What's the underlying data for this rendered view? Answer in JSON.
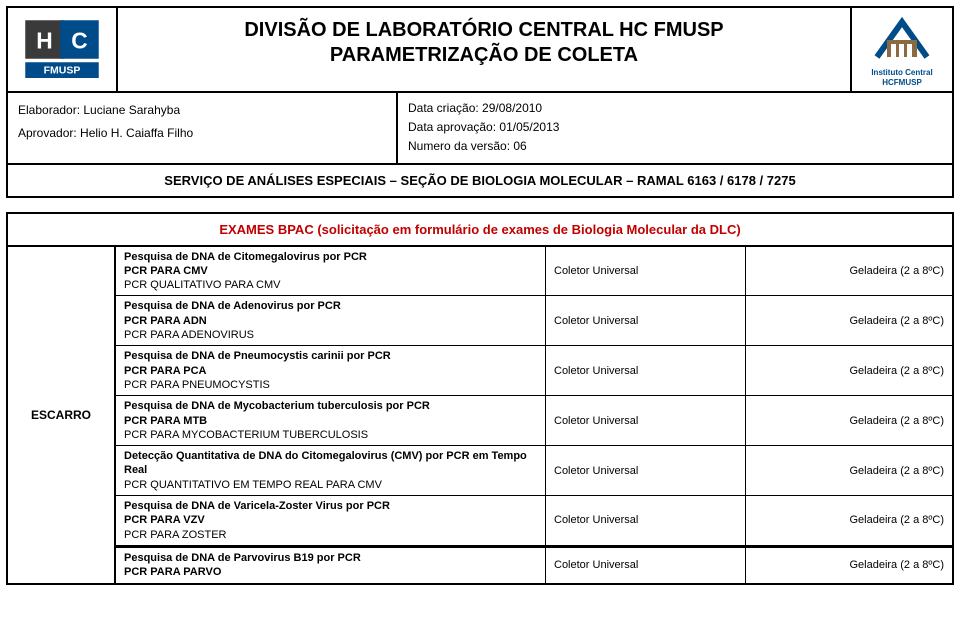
{
  "header": {
    "title_line1": "DIVISÃO DE LABORATÓRIO CENTRAL HC FMUSP",
    "title_line2": "PARAMETRIZAÇÃO DE COLETA",
    "logo_left_text": "HC",
    "logo_left_sub": "FMUSP",
    "logo_right_line1": "Instituto Central",
    "logo_right_line2": "HCFMUSP"
  },
  "meta": {
    "elaborador_label": "Elaborador: Luciane Sarahyba",
    "aprovador_label": "Aprovador: Helio H. Caiaffa Filho",
    "data_criacao": "Data criação: 29/08/2010",
    "data_aprov": "Data aprovação: 01/05/2013",
    "versao": "Numero da versão: 06"
  },
  "service_line": "SERVIÇO DE ANÁLISES ESPECIAIS – SEÇÃO DE BIOLOGIA MOLECULAR – RAMAL 6163 / 6178 / 7275",
  "exams_title": "EXAMES BPAC (solicitação em formulário de exames de Biologia Molecular da DLC)",
  "sample_label": "ESCARRO",
  "coletor": "Coletor Universal",
  "geladeira": "Geladeira (2 a 8ºC)",
  "tests": [
    {
      "lines": [
        {
          "t": "Pesquisa de DNA de Citomegalovirus por PCR",
          "b": true
        },
        {
          "t": "PCR PARA CMV",
          "b": true
        },
        {
          "t": "PCR QUALITATIVO PARA CMV",
          "b": false
        }
      ]
    },
    {
      "lines": [
        {
          "t": "Pesquisa de DNA de Adenovirus por PCR",
          "b": true
        },
        {
          "t": "PCR PARA ADN",
          "b": true
        },
        {
          "t": "PCR PARA ADENOVIRUS",
          "b": false
        }
      ]
    },
    {
      "lines": [
        {
          "t": "Pesquisa de DNA de Pneumocystis carinii por PCR",
          "b": true
        },
        {
          "t": "PCR PARA PCA",
          "b": true
        },
        {
          "t": "PCR PARA PNEUMOCYSTIS",
          "b": false
        }
      ]
    },
    {
      "lines": [
        {
          "t": "Pesquisa de DNA de Mycobacterium tuberculosis por PCR",
          "b": true
        },
        {
          "t": "PCR PARA MTB",
          "b": true
        },
        {
          "t": "PCR PARA MYCOBACTERIUM TUBERCULOSIS",
          "b": false
        }
      ]
    },
    {
      "lines": [
        {
          "t": "Detecção Quantitativa de DNA do Citomegalovirus (CMV) por PCR em Tempo Real",
          "b": true
        },
        {
          "t": "PCR QUANTITATIVO EM TEMPO REAL PARA CMV",
          "b": false
        }
      ]
    },
    {
      "lines": [
        {
          "t": "Pesquisa de DNA de Varicela-Zoster Virus por PCR",
          "b": true
        },
        {
          "t": "PCR PARA VZV",
          "b": true
        },
        {
          "t": "PCR PARA ZOSTER",
          "b": false
        }
      ]
    }
  ],
  "extra_test": {
    "lines": [
      {
        "t": "Pesquisa de DNA de Parvovirus B19 por PCR",
        "b": true
      },
      {
        "t": "PCR PARA PARVO",
        "b": true
      }
    ]
  },
  "colors": {
    "border": "#000000",
    "red": "#c00000",
    "logo_blue": "#004c8a",
    "logo_gray": "#3a3a3a"
  }
}
